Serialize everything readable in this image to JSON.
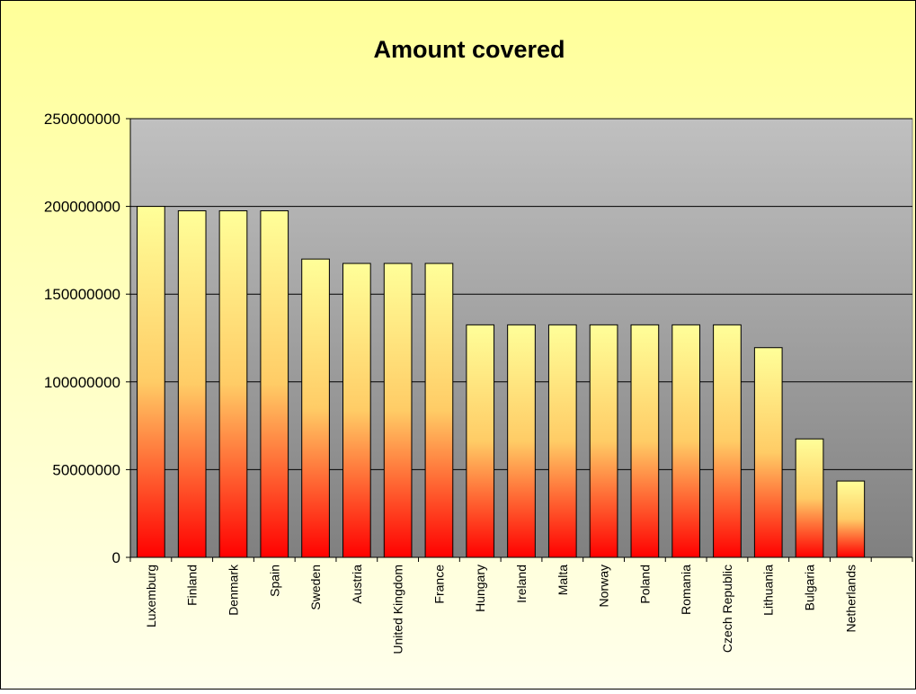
{
  "chart_data": {
    "type": "bar",
    "title": "Amount covered",
    "xlabel": "",
    "ylabel": "",
    "ylim": [
      0,
      250000000
    ],
    "yticks": [
      0,
      50000000,
      100000000,
      150000000,
      200000000,
      250000000
    ],
    "ytick_labels": [
      "0",
      "50000000",
      "100000000",
      "150000000",
      "200000000",
      "250000000"
    ],
    "grid": true,
    "legend": "none",
    "categories": [
      "Luxemburg",
      "Finland",
      "Denmark",
      "Spain",
      "Sweden",
      "Austria",
      "United Kingdom",
      "France",
      "Hungary",
      "Ireland",
      "Malta",
      "Norway",
      "Poland",
      "Romania",
      "Czech Republic",
      "Lithuania",
      "Bulgaria",
      "Netherlands",
      ""
    ],
    "values": [
      200000000,
      197500000,
      197500000,
      197500000,
      170000000,
      167500000,
      167500000,
      167500000,
      132500000,
      132500000,
      132500000,
      132500000,
      132500000,
      132500000,
      132500000,
      119500000,
      67500000,
      43500000,
      null
    ],
    "colors": {
      "background": "#FFFF99",
      "plot_top": "#C0C0C0",
      "plot_bottom": "#808080",
      "bar_top": "#FFFF99",
      "bar_mid": "#FFCC66",
      "bar_bottom": "#FF0000",
      "gridline": "#000000"
    }
  }
}
